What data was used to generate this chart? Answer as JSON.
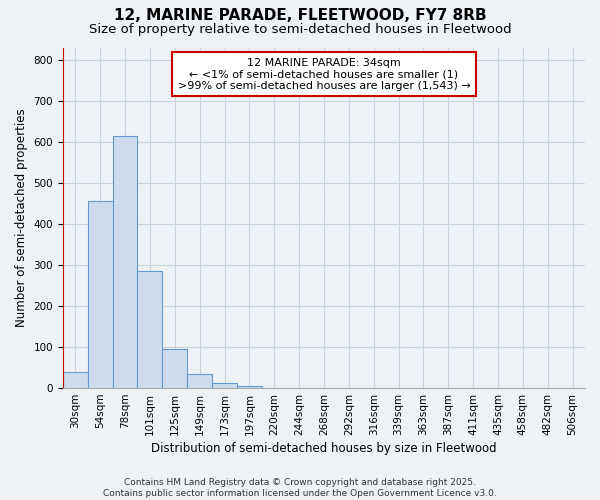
{
  "title_line1": "12, MARINE PARADE, FLEETWOOD, FY7 8RB",
  "title_line2": "Size of property relative to semi-detached houses in Fleetwood",
  "xlabel": "Distribution of semi-detached houses by size in Fleetwood",
  "ylabel": "Number of semi-detached properties",
  "categories": [
    "30sqm",
    "54sqm",
    "78sqm",
    "101sqm",
    "125sqm",
    "149sqm",
    "173sqm",
    "197sqm",
    "220sqm",
    "244sqm",
    "268sqm",
    "292sqm",
    "316sqm",
    "339sqm",
    "363sqm",
    "387sqm",
    "411sqm",
    "435sqm",
    "458sqm",
    "482sqm",
    "506sqm"
  ],
  "values": [
    40,
    455,
    615,
    285,
    95,
    35,
    13,
    6,
    0,
    0,
    0,
    0,
    0,
    0,
    0,
    0,
    0,
    0,
    0,
    0,
    0
  ],
  "bar_color": "#ccdcee",
  "bar_edge_color": "#6699cc",
  "grid_color": "#c8d4e0",
  "background_color": "#eef2f7",
  "plot_bg_color": "#eef2f7",
  "annotation_text": "12 MARINE PARADE: 34sqm\n← <1% of semi-detached houses are smaller (1)\n>99% of semi-detached houses are larger (1,543) →",
  "annotation_box_color": "#ffffff",
  "annotation_box_edge": "#cc0000",
  "red_line_color": "#cc0000",
  "ylim": [
    0,
    830
  ],
  "yticks": [
    0,
    100,
    200,
    300,
    400,
    500,
    600,
    700,
    800
  ],
  "footer_line1": "Contains HM Land Registry data © Crown copyright and database right 2025.",
  "footer_line2": "Contains public sector information licensed under the Open Government Licence v3.0.",
  "title_fontsize": 11,
  "subtitle_fontsize": 9.5,
  "axis_label_fontsize": 8.5,
  "tick_fontsize": 7.5,
  "annotation_fontsize": 8,
  "footer_fontsize": 6.5
}
